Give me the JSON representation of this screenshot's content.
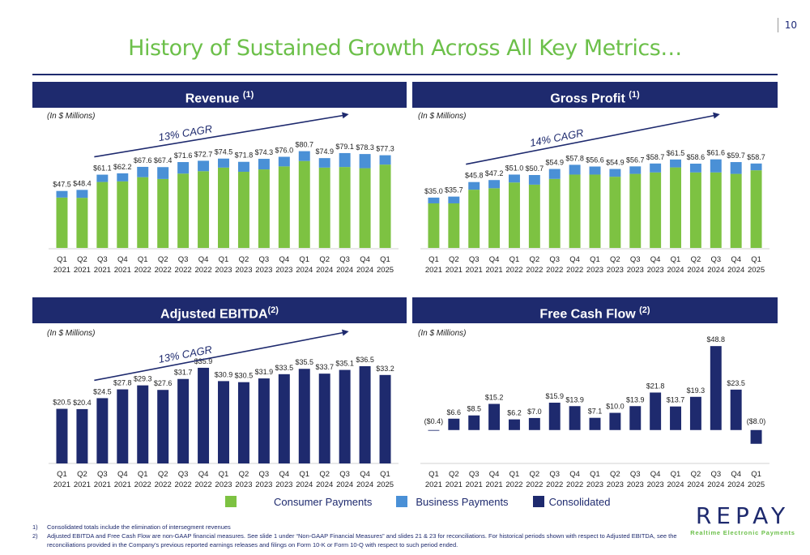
{
  "page_number": "10",
  "title": "History of Sustained Growth Across All Key Metrics…",
  "chart_data": [
    {
      "type": "bar",
      "stacked": true,
      "header": "Revenue",
      "header_sup": "(1)",
      "units": "(In $ Millions)",
      "cagr": "13% CAGR",
      "categories": [
        [
          "Q1",
          "2021"
        ],
        [
          "Q2",
          "2021"
        ],
        [
          "Q3",
          "2021"
        ],
        [
          "Q4",
          "2021"
        ],
        [
          "Q1",
          "2022"
        ],
        [
          "Q2",
          "2022"
        ],
        [
          "Q3",
          "2022"
        ],
        [
          "Q4",
          "2022"
        ],
        [
          "Q1",
          "2023"
        ],
        [
          "Q2",
          "2023"
        ],
        [
          "Q3",
          "2023"
        ],
        [
          "Q4",
          "2023"
        ],
        [
          "Q1",
          "2024"
        ],
        [
          "Q2",
          "2024"
        ],
        [
          "Q3",
          "2024"
        ],
        [
          "Q4",
          "2024"
        ],
        [
          "Q1",
          "2025"
        ]
      ],
      "series": [
        {
          "name": "Consumer Payments",
          "color": "#7dc242",
          "values": [
            42.0,
            41.8,
            55.0,
            55.5,
            59.0,
            57.5,
            62.0,
            64.0,
            67.0,
            63.5,
            65.5,
            68.0,
            72.5,
            67.0,
            67.5,
            66.5,
            69.5
          ]
        },
        {
          "name": "Business Payments",
          "color": "#4a90d6",
          "values": [
            5.5,
            6.6,
            6.1,
            6.7,
            8.6,
            9.9,
            9.6,
            8.7,
            7.5,
            8.3,
            8.8,
            8.0,
            8.2,
            7.9,
            11.6,
            11.8,
            7.8
          ]
        }
      ],
      "totals": [
        "$47.5",
        "$48.4",
        "$61.1",
        "$62.2",
        "$67.6",
        "$67.4",
        "$71.6",
        "$72.7",
        "$74.5",
        "$71.8",
        "$74.3",
        "$76.0",
        "$80.7",
        "$74.9",
        "$79.1",
        "$78.3",
        "$77.3"
      ],
      "ylim": [
        0,
        100
      ]
    },
    {
      "type": "bar",
      "stacked": true,
      "header": "Gross Profit",
      "header_sup": "(1)",
      "units": "(In $ Millions)",
      "cagr": "14% CAGR",
      "categories": [
        [
          "Q1",
          "2021"
        ],
        [
          "Q2",
          "2021"
        ],
        [
          "Q3",
          "2021"
        ],
        [
          "Q4",
          "2021"
        ],
        [
          "Q1",
          "2022"
        ],
        [
          "Q2",
          "2022"
        ],
        [
          "Q3",
          "2022"
        ],
        [
          "Q4",
          "2022"
        ],
        [
          "Q1",
          "2023"
        ],
        [
          "Q2",
          "2023"
        ],
        [
          "Q3",
          "2023"
        ],
        [
          "Q4",
          "2023"
        ],
        [
          "Q1",
          "2024"
        ],
        [
          "Q2",
          "2024"
        ],
        [
          "Q3",
          "2024"
        ],
        [
          "Q4",
          "2024"
        ],
        [
          "Q1",
          "2025"
        ]
      ],
      "series": [
        {
          "name": "Consumer Payments",
          "color": "#7dc242",
          "values": [
            31.0,
            31.0,
            40.5,
            41.5,
            45.5,
            44.0,
            48.0,
            51.0,
            51.0,
            49.5,
            51.5,
            52.5,
            56.0,
            52.5,
            52.5,
            51.5,
            54.0
          ]
        },
        {
          "name": "Business Payments",
          "color": "#4a90d6",
          "values": [
            4.0,
            4.7,
            5.3,
            5.7,
            5.5,
            6.7,
            6.9,
            6.8,
            5.6,
            5.4,
            5.2,
            6.2,
            5.5,
            6.1,
            9.1,
            8.2,
            4.7
          ]
        }
      ],
      "totals": [
        "$35.0",
        "$35.7",
        "$45.8",
        "$47.2",
        "$51.0",
        "$50.7",
        "$54.9",
        "$57.8",
        "$56.6",
        "$54.9",
        "$56.7",
        "$58.7",
        "$61.5",
        "$58.6",
        "$61.6",
        "$59.7",
        "$58.7"
      ],
      "ylim": [
        0,
        80
      ]
    },
    {
      "type": "bar",
      "header": "Adjusted EBITDA",
      "header_sup": "(2)",
      "units": "(In $ Millions)",
      "cagr": "13% CAGR",
      "categories": [
        [
          "Q1",
          "2021"
        ],
        [
          "Q2",
          "2021"
        ],
        [
          "Q3",
          "2021"
        ],
        [
          "Q4",
          "2021"
        ],
        [
          "Q1",
          "2022"
        ],
        [
          "Q2",
          "2022"
        ],
        [
          "Q3",
          "2022"
        ],
        [
          "Q4",
          "2022"
        ],
        [
          "Q1",
          "2023"
        ],
        [
          "Q2",
          "2023"
        ],
        [
          "Q3",
          "2023"
        ],
        [
          "Q4",
          "2023"
        ],
        [
          "Q1",
          "2024"
        ],
        [
          "Q2",
          "2024"
        ],
        [
          "Q3",
          "2024"
        ],
        [
          "Q4",
          "2024"
        ],
        [
          "Q1",
          "2025"
        ]
      ],
      "series": [
        {
          "name": "Consolidated",
          "color": "#1e2a6e",
          "values": [
            20.5,
            20.4,
            24.5,
            27.8,
            29.3,
            27.6,
            31.7,
            35.9,
            30.9,
            30.5,
            31.9,
            33.5,
            35.5,
            33.7,
            35.1,
            36.5,
            33.2
          ]
        }
      ],
      "labels": [
        "$20.5",
        "$20.4",
        "$24.5",
        "$27.8",
        "$29.3",
        "$27.6",
        "$31.7",
        "$35.9",
        "$30.9",
        "$30.5",
        "$31.9",
        "$33.5",
        "$35.5",
        "$33.7",
        "$35.1",
        "$36.5",
        "$33.2"
      ],
      "ylim": [
        0,
        45
      ]
    },
    {
      "type": "bar",
      "header": "Free Cash Flow",
      "header_sup": "(2)",
      "units": "(In $ Millions)",
      "categories": [
        [
          "Q1",
          "2021"
        ],
        [
          "Q2",
          "2021"
        ],
        [
          "Q3",
          "2021"
        ],
        [
          "Q4",
          "2021"
        ],
        [
          "Q1",
          "2022"
        ],
        [
          "Q2",
          "2022"
        ],
        [
          "Q3",
          "2022"
        ],
        [
          "Q4",
          "2022"
        ],
        [
          "Q1",
          "2023"
        ],
        [
          "Q2",
          "2023"
        ],
        [
          "Q3",
          "2023"
        ],
        [
          "Q4",
          "2023"
        ],
        [
          "Q1",
          "2024"
        ],
        [
          "Q2",
          "2024"
        ],
        [
          "Q3",
          "2024"
        ],
        [
          "Q4",
          "2024"
        ],
        [
          "Q1",
          "2025"
        ]
      ],
      "series": [
        {
          "name": "Consolidated",
          "color": "#1e2a6e",
          "values": [
            -0.4,
            6.6,
            8.5,
            15.2,
            6.2,
            7.0,
            15.9,
            13.9,
            7.1,
            10.0,
            13.9,
            21.8,
            13.7,
            19.3,
            48.8,
            23.5,
            -8.0
          ]
        }
      ],
      "labels": [
        "($0.4)",
        "$6.6",
        "$8.5",
        "$15.2",
        "$6.2",
        "$7.0",
        "$15.9",
        "$13.9",
        "$7.1",
        "$10.0",
        "$13.9",
        "$21.8",
        "$13.7",
        "$19.3",
        "$48.8",
        "$23.5",
        "($8.0)"
      ],
      "ylim": [
        -10,
        55
      ]
    }
  ],
  "legend": [
    {
      "label": "Consumer Payments",
      "color": "#7dc242"
    },
    {
      "label": "Business Payments",
      "color": "#4a90d6"
    },
    {
      "label": "Consolidated",
      "color": "#1e2a6e"
    }
  ],
  "footnotes": [
    {
      "num": "1)",
      "text": "Consolidated totals include the elimination of intersegment revenues"
    },
    {
      "num": "2)",
      "text": "Adjusted EBITDA and Free Cash Flow are non-GAAP financial measures.  See slide 1 under “Non-GAAP Financial Measures” and slides 21 & 23 for reconciliations. For historical periods shown with respect to Adjusted EBITDA, see the reconciliations provided in the Company’s previous reported earnings releases and filings on Form 10-K or Form 10-Q with respect to such period ended."
    }
  ],
  "logo": {
    "name": "REPAY",
    "tagline": "Realtime Electronic Payments"
  }
}
